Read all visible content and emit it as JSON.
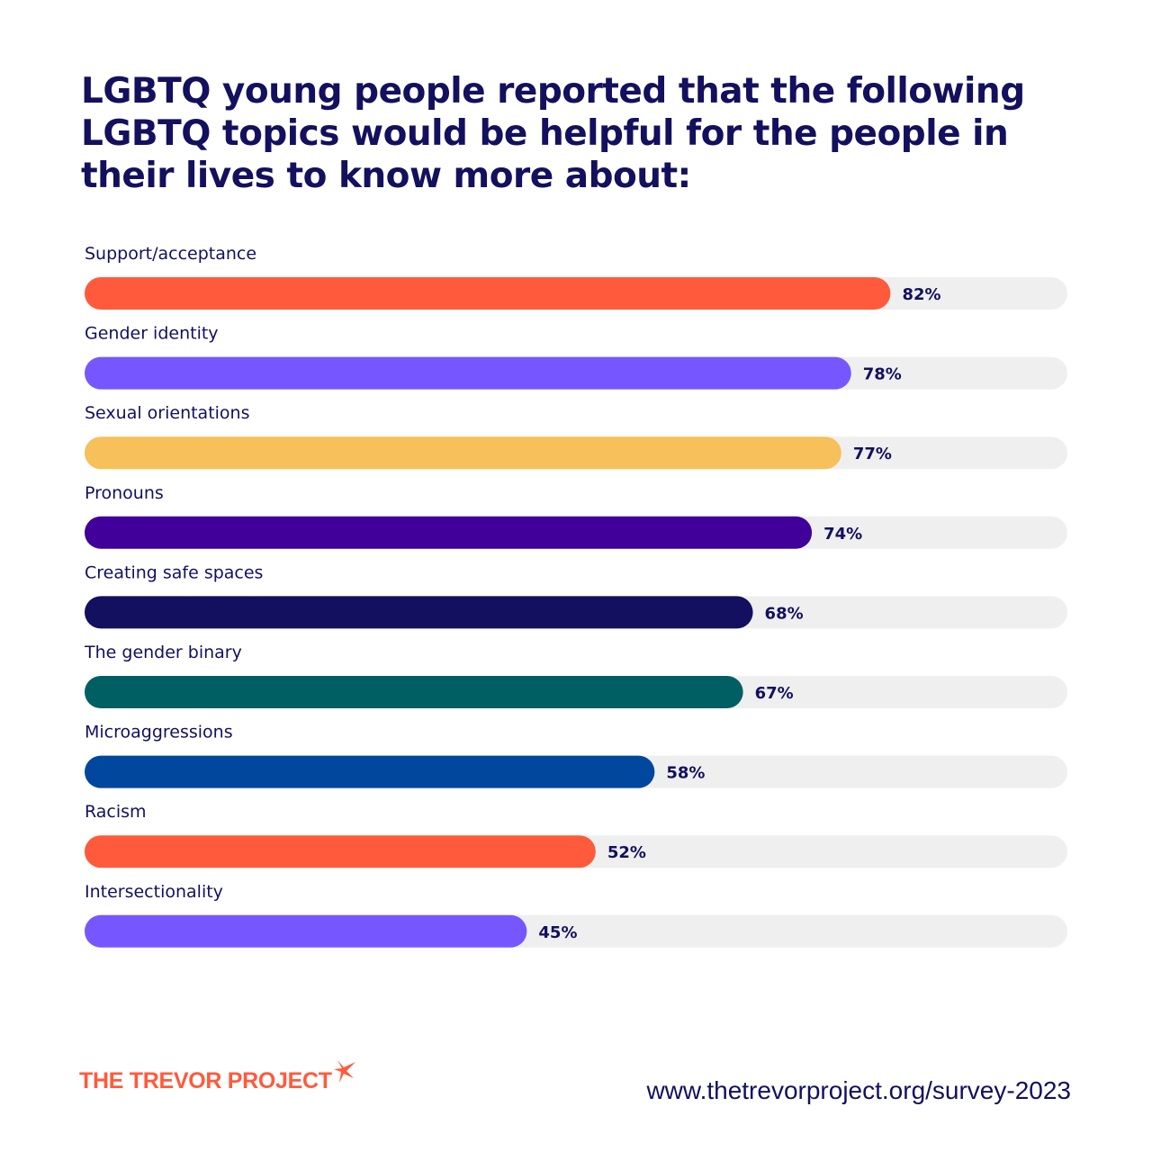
{
  "chart_data": {
    "type": "bar",
    "orientation": "horizontal",
    "title": "LGBTQ young people reported that the following LGBTQ topics would be helpful for the people in their lives to know more about:",
    "categories": [
      "Support/acceptance",
      "Gender identity",
      "Sexual orientations",
      "Pronouns",
      "Creating safe spaces",
      "The gender binary",
      "Microaggressions",
      "Racism",
      "Intersectionality"
    ],
    "values": [
      82,
      78,
      77,
      74,
      68,
      67,
      58,
      52,
      45
    ],
    "value_labels": [
      "82%",
      "78%",
      "77%",
      "74%",
      "68%",
      "67%",
      "58%",
      "52%",
      "45%"
    ],
    "colors": [
      "#ff5a3c",
      "#7657ff",
      "#f8c05a",
      "#410099",
      "#12105f",
      "#005f63",
      "#00479d",
      "#ff5a3c",
      "#7657ff"
    ],
    "track_color": "#efefef",
    "xlim": [
      0,
      100
    ],
    "grid": false,
    "legend": "none"
  },
  "footer": {
    "logo_text": "THE TREVOR PROJECT",
    "url": "www.thetrevorproject.org/survey-2023"
  }
}
